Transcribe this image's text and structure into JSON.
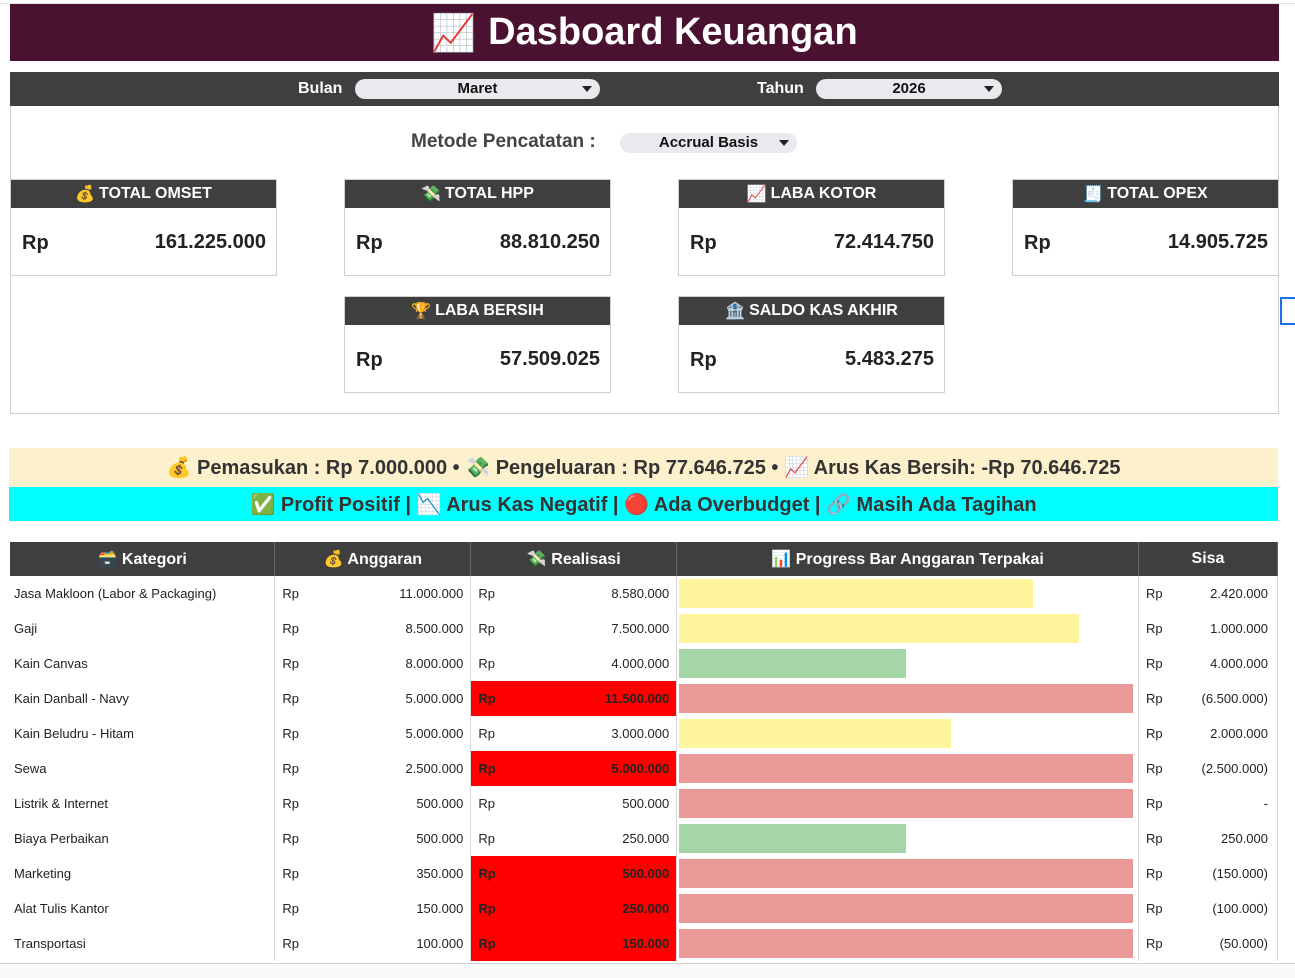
{
  "title": {
    "icon": "📈",
    "text": "Dasboard Keuangan"
  },
  "filters": {
    "bulan_label": "Bulan",
    "bulan_value": "Maret",
    "tahun_label": "Tahun",
    "tahun_value": "2026",
    "metode_label": "Metode Pencatatan :",
    "metode_value": "Accrual Basis"
  },
  "kpis": {
    "omset": {
      "icon": "💰",
      "label": "TOTAL OMSET",
      "currency": "Rp",
      "value": "161.225.000"
    },
    "hpp": {
      "icon": "💸",
      "label": "TOTAL HPP",
      "currency": "Rp",
      "value": "88.810.250"
    },
    "laba_kotor": {
      "icon": "📈",
      "label": "LABA KOTOR",
      "currency": "Rp",
      "value": "72.414.750"
    },
    "opex": {
      "icon": "🧾",
      "label": "TOTAL OPEX",
      "currency": "Rp",
      "value": "14.905.725"
    },
    "laba_bersih": {
      "icon": "🏆",
      "label": "LABA BERSIH",
      "currency": "Rp",
      "value": "57.509.025"
    },
    "saldo_kas": {
      "icon": "🏦",
      "label": "SALDO KAS AKHIR",
      "currency": "Rp",
      "value": "5.483.275"
    }
  },
  "summary": "💰 Pemasukan : Rp 7.000.000  •  💸 Pengeluaran : Rp 77.646.725  •  📈 Arus Kas Bersih: -Rp 70.646.725",
  "status": "✅ Profit Positif  |  📉 Arus Kas Negatif  |  🔴 Ada Overbudget  |  🔗 Masih Ada Tagihan",
  "table": {
    "headers": {
      "kategori": "🗃️ Kategori",
      "anggaran": "💰 Anggaran",
      "realisasi": "💸 Realisasi",
      "progress": "📊 Progress Bar Anggaran Terpakai",
      "sisa": "Sisa"
    },
    "rows": [
      {
        "kategori": "Jasa Makloon (Labor & Packaging)",
        "rp": "Rp",
        "anggaran": "11.000.000",
        "realisasi": "8.580.000",
        "over": false,
        "usage": 0.78,
        "bar": "yellow",
        "sisa": "2.420.000"
      },
      {
        "kategori": "Gaji",
        "rp": "Rp",
        "anggaran": "8.500.000",
        "realisasi": "7.500.000",
        "over": false,
        "usage": 0.88,
        "bar": "yellow",
        "sisa": "1.000.000"
      },
      {
        "kategori": "Kain Canvas",
        "rp": "Rp",
        "anggaran": "8.000.000",
        "realisasi": "4.000.000",
        "over": false,
        "usage": 0.5,
        "bar": "green",
        "sisa": "4.000.000"
      },
      {
        "kategori": "Kain Danball - Navy",
        "rp": "Rp",
        "anggaran": "5.000.000",
        "realisasi": "11.500.000",
        "over": true,
        "usage": 1.0,
        "bar": "red",
        "sisa": "(6.500.000)"
      },
      {
        "kategori": "Kain Beludru - Hitam",
        "rp": "Rp",
        "anggaran": "5.000.000",
        "realisasi": "3.000.000",
        "over": false,
        "usage": 0.6,
        "bar": "yellow",
        "sisa": "2.000.000"
      },
      {
        "kategori": "Sewa",
        "rp": "Rp",
        "anggaran": "2.500.000",
        "realisasi": "5.000.000",
        "over": true,
        "usage": 1.0,
        "bar": "red",
        "sisa": "(2.500.000)"
      },
      {
        "kategori": "Listrik & Internet",
        "rp": "Rp",
        "anggaran": "500.000",
        "realisasi": "500.000",
        "over": false,
        "usage": 1.0,
        "bar": "red",
        "sisa": "-"
      },
      {
        "kategori": "Biaya Perbaikan",
        "rp": "Rp",
        "anggaran": "500.000",
        "realisasi": "250.000",
        "over": false,
        "usage": 0.5,
        "bar": "green",
        "sisa": "250.000"
      },
      {
        "kategori": "Marketing",
        "rp": "Rp",
        "anggaran": "350.000",
        "realisasi": "500.000",
        "over": true,
        "usage": 1.0,
        "bar": "red",
        "sisa": "(150.000)"
      },
      {
        "kategori": "Alat Tulis Kantor",
        "rp": "Rp",
        "anggaran": "150.000",
        "realisasi": "250.000",
        "over": true,
        "usage": 1.0,
        "bar": "red",
        "sisa": "(100.000)"
      },
      {
        "kategori": "Transportasi",
        "rp": "Rp",
        "anggaran": "100.000",
        "realisasi": "150.000",
        "over": true,
        "usage": 1.0,
        "bar": "red",
        "sisa": "(50.000)"
      }
    ]
  }
}
